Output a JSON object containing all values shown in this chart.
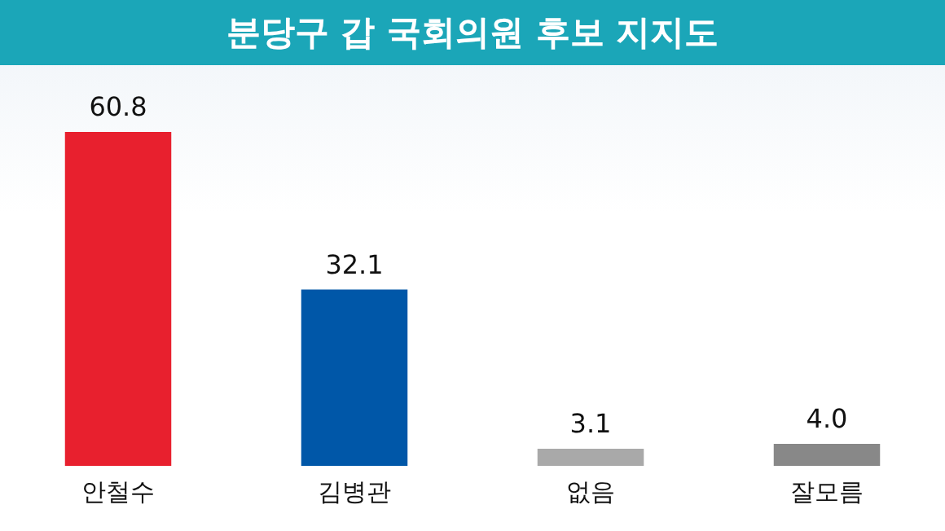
{
  "chart_data": {
    "type": "bar",
    "title": "분당구 갑 국회의원 후보 지지도",
    "categories": [
      "안철수",
      "김병관",
      "없음",
      "잘모름"
    ],
    "values": [
      60.8,
      32.1,
      3.1,
      4.0
    ],
    "colors": [
      "#e8202e",
      "#0057a8",
      "#a9a9a9",
      "#888888"
    ],
    "value_labels": [
      "60.8",
      "32.1",
      "3.1",
      "4.0"
    ],
    "grid": false,
    "legend": false
  }
}
